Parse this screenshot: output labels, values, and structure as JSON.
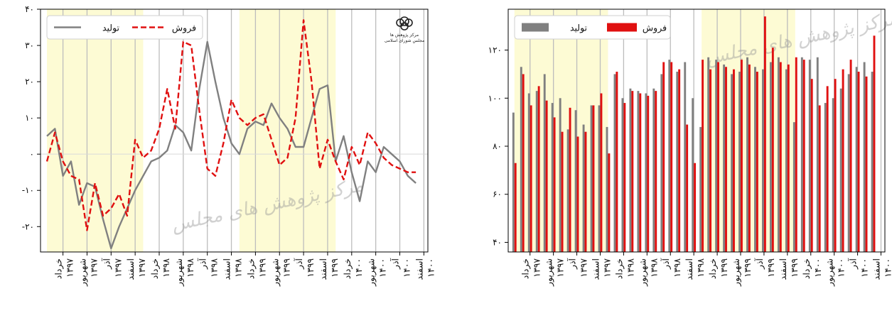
{
  "chart_data": [
    {
      "type": "line",
      "ylim": [
        -27,
        40
      ],
      "yticks": [
        {
          "value": -20,
          "label": "-۲۰"
        },
        {
          "value": -10,
          "label": "-۱۰"
        },
        {
          "value": 0,
          "label": "۰"
        },
        {
          "value": 10,
          "label": "۱۰"
        },
        {
          "value": 20,
          "label": "۲۰"
        },
        {
          "value": 30,
          "label": "۳۰"
        },
        {
          "value": 40,
          "label": "۴۰"
        }
      ],
      "x_index_range": [
        -0.8,
        47.5
      ],
      "shaded_spans": [
        [
          0,
          12
        ],
        [
          24,
          36
        ]
      ],
      "xtick_index": [
        2,
        5,
        8,
        11,
        14,
        17,
        20,
        23,
        26,
        29,
        32,
        35,
        38,
        41,
        44,
        47
      ],
      "zero_line": true,
      "legend": {
        "position": "top-left",
        "entries": [
          "تولید",
          "فروش"
        ]
      },
      "series": [
        {
          "name": "تولید",
          "color": "#808080",
          "style": "solid",
          "values": [
            5,
            7,
            -6,
            -2,
            -14,
            -8,
            -9,
            -18,
            -26,
            -20,
            -15,
            -10,
            -6,
            -2,
            -1,
            1,
            8,
            6,
            1,
            18,
            31,
            20,
            10,
            3,
            0,
            7,
            9,
            8,
            14,
            10,
            7,
            2,
            2,
            10,
            18,
            19,
            -2,
            5,
            -5,
            -13,
            -2,
            -5,
            2,
            0,
            -2,
            -6,
            -8
          ]
        },
        {
          "name": "فروش",
          "color": "#e01010",
          "style": "dashed",
          "values": [
            -2,
            6,
            -2,
            -6,
            -7,
            -21,
            -8,
            -17,
            -15,
            -11,
            -17,
            4,
            -1,
            1,
            7,
            18,
            7,
            31,
            30,
            12,
            -4,
            -6,
            3,
            15,
            10,
            8,
            10,
            11,
            4,
            -3,
            -1,
            10,
            37,
            20,
            -4,
            4,
            -2,
            -7,
            2,
            -3,
            6,
            3,
            -1,
            -3,
            -4,
            -5,
            -5
          ]
        }
      ]
    },
    {
      "type": "bar",
      "ylim": [
        36,
        137
      ],
      "yticks": [
        {
          "value": 40,
          "label": "۴۰"
        },
        {
          "value": 60,
          "label": "۶۰"
        },
        {
          "value": 80,
          "label": "۸۰"
        },
        {
          "value": 100,
          "label": "۱۰۰"
        },
        {
          "value": 120,
          "label": "۱۲۰"
        }
      ],
      "x_index_range": [
        -0.8,
        47.5
      ],
      "shaded_spans": [
        [
          0,
          12
        ],
        [
          24,
          36
        ]
      ],
      "xtick_index": [
        2,
        5,
        8,
        11,
        14,
        17,
        20,
        23,
        26,
        29,
        32,
        35,
        38,
        41,
        44,
        47
      ],
      "legend": {
        "position": "top-left",
        "entries": [
          "تولید",
          "فروش"
        ]
      },
      "series": [
        {
          "name": "تولید",
          "color": "#808080",
          "values": [
            94,
            113,
            102,
            103,
            110,
            98,
            100,
            87,
            95,
            89,
            97,
            97,
            88,
            110,
            100,
            104,
            103,
            102,
            104,
            110,
            116,
            111,
            115,
            100,
            88,
            117,
            116,
            114,
            110,
            111,
            117,
            113,
            112,
            115,
            117,
            112,
            90,
            117,
            116,
            117,
            98,
            100,
            104,
            110,
            113,
            115,
            111
          ]
        },
        {
          "name": "فروش",
          "color": "#e01010",
          "values": [
            73,
            110,
            97,
            105,
            99,
            92,
            86,
            96,
            84,
            86,
            97,
            102,
            77,
            111,
            98,
            103,
            102,
            101,
            103,
            115,
            115,
            112,
            89,
            73,
            116,
            112,
            115,
            113,
            112,
            116,
            114,
            111,
            134,
            121,
            115,
            114,
            117,
            116,
            108,
            97,
            105,
            108,
            112,
            116,
            111,
            109,
            126
          ]
        }
      ]
    }
  ],
  "x_tick_labels": [
    {
      "month": "خرداد",
      "year": "۱۳۹۷"
    },
    {
      "month": "شهریور",
      "year": "۱۳۹۷"
    },
    {
      "month": "آذر",
      "year": "۱۳۹۷"
    },
    {
      "month": "اسفند",
      "year": "۱۳۹۷"
    },
    {
      "month": "خرداد",
      "year": "۱۳۹۸"
    },
    {
      "month": "شهریور",
      "year": "۱۳۹۸"
    },
    {
      "month": "آذر",
      "year": "۱۳۹۸"
    },
    {
      "month": "اسفند",
      "year": "۱۳۹۸"
    },
    {
      "month": "خرداد",
      "year": "۱۳۹۹"
    },
    {
      "month": "شهریور",
      "year": "۱۳۹۹"
    },
    {
      "month": "آذر",
      "year": "۱۳۹۹"
    },
    {
      "month": "اسفند",
      "year": "۱۳۹۹"
    },
    {
      "month": "خرداد",
      "year": "۱۴۰۰"
    },
    {
      "month": "شهریور",
      "year": "۱۴۰۰"
    },
    {
      "month": "آذر",
      "year": "۱۴۰۰"
    },
    {
      "month": "اسفند",
      "year": "۱۴۰۰"
    }
  ],
  "watermark": "مرکز پژوهش های مجلس",
  "logo_text": [
    "مرکز پژوهش ها",
    "مجلس شورای اسلامی"
  ],
  "colors": {
    "shade": "#fdfbd4",
    "grid": "#bdbdbd",
    "zero_line": "#d9d9d9",
    "production": "#808080",
    "sales": "#e01010"
  }
}
